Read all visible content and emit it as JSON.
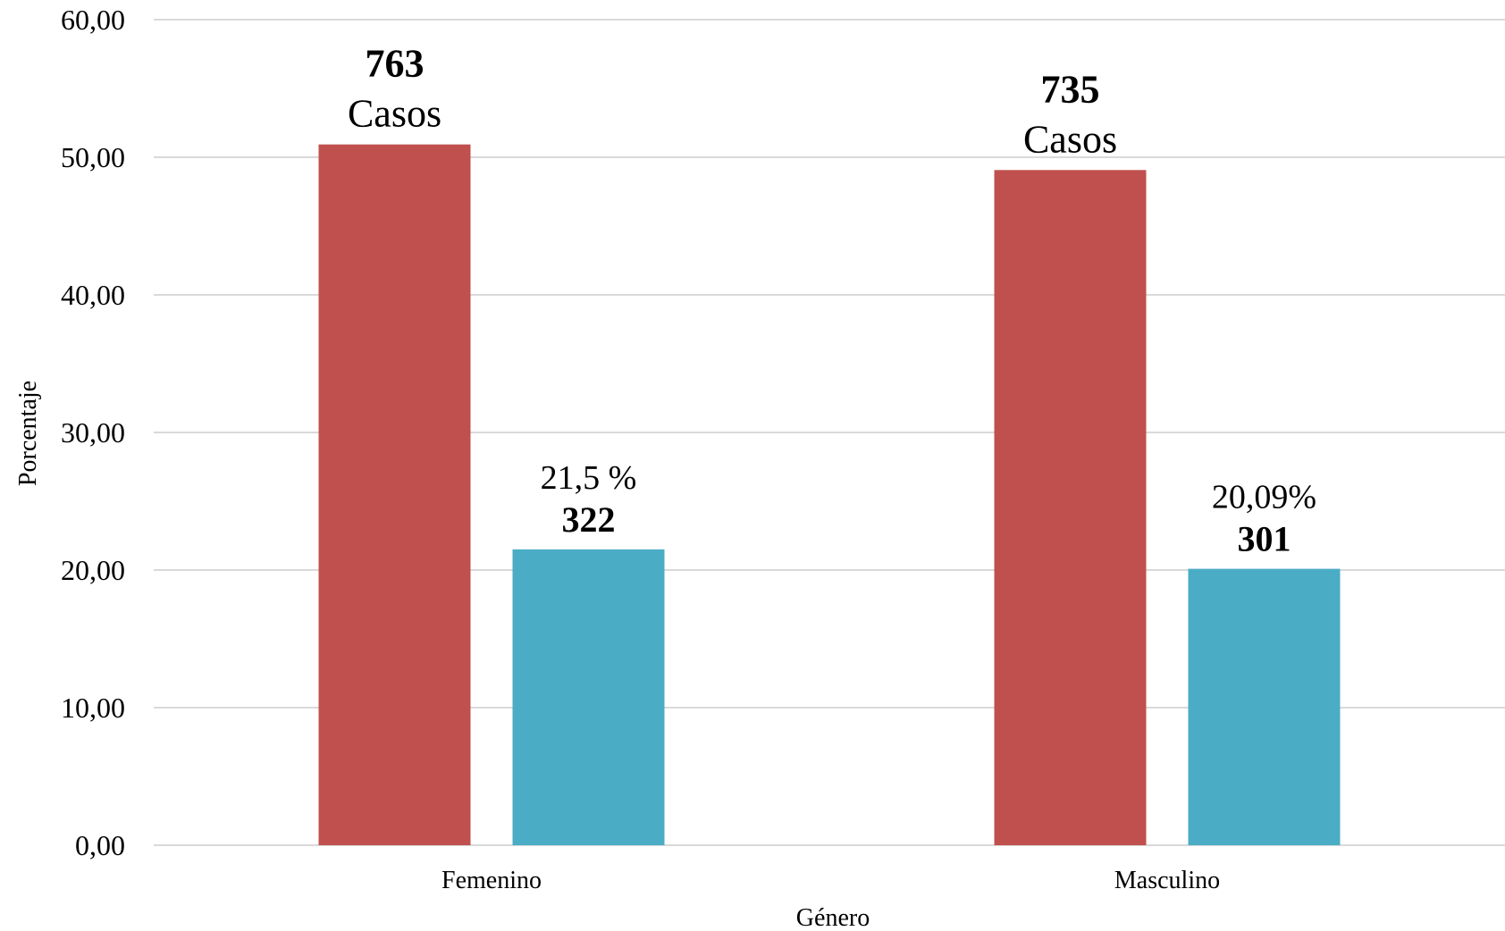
{
  "chart_data": {
    "type": "bar",
    "categories": [
      "Femenino",
      "Masculino"
    ],
    "series": [
      {
        "values": [
          50.93,
          49.07
        ],
        "color": "#c0504d"
      },
      {
        "values": [
          21.5,
          20.09
        ],
        "color": "#4bacc6"
      }
    ],
    "annotations": [
      {
        "category": "Femenino",
        "series": 0,
        "lines": [
          {
            "text": "763",
            "style": "bold"
          },
          {
            "text": "Casos",
            "style": "regular"
          }
        ]
      },
      {
        "category": "Masculino",
        "series": 0,
        "lines": [
          {
            "text": "735",
            "style": "bold"
          },
          {
            "text": "Casos",
            "style": "regular"
          }
        ]
      },
      {
        "category": "Femenino",
        "series": 1,
        "lines": [
          {
            "text": "21,5 %",
            "style": "pct"
          },
          {
            "text": "322",
            "style": "count"
          }
        ]
      },
      {
        "category": "Masculino",
        "series": 1,
        "lines": [
          {
            "text": "20,09%",
            "style": "pct"
          },
          {
            "text": "301",
            "style": "count"
          }
        ]
      }
    ],
    "yticks": [
      "0,00",
      "10,00",
      "20,00",
      "30,00",
      "40,00",
      "50,00",
      "60,00"
    ],
    "ylim": [
      0,
      60
    ],
    "xlabel": "Género",
    "ylabel": "Porcentaje",
    "grid": true
  }
}
